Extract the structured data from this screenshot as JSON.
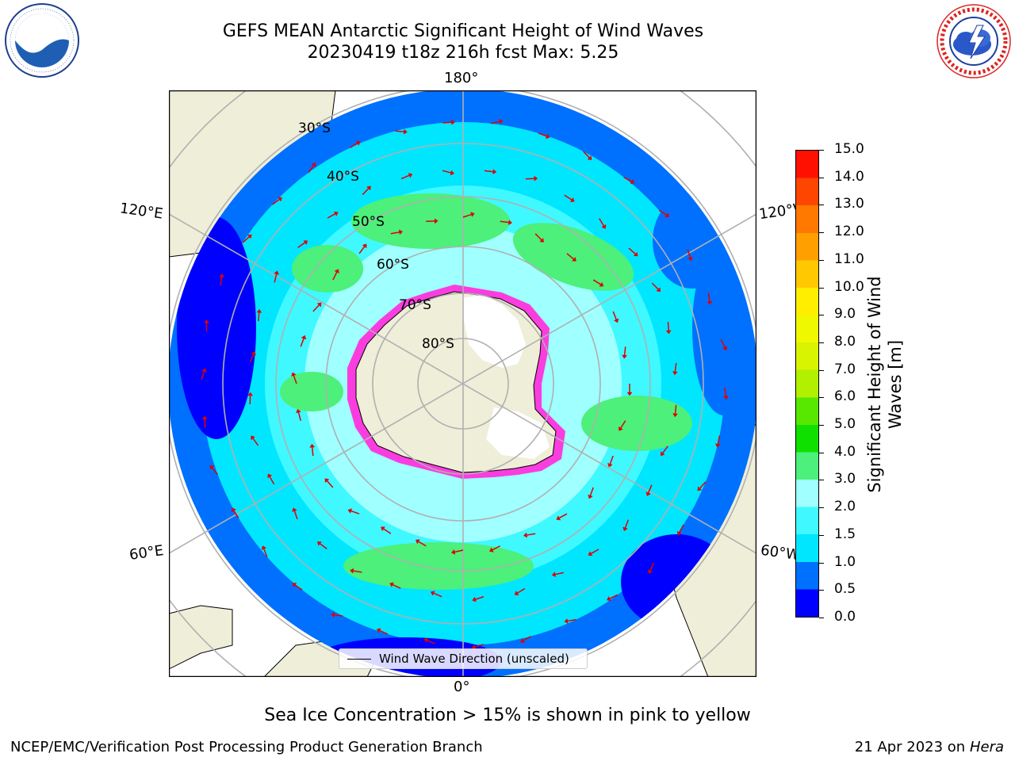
{
  "header": {
    "title_line1": "GEFS MEAN Antarctic Significant Height of Wind Waves",
    "title_line2": "20230419 t18z 216h fcst   Max: 5.25"
  },
  "logos": {
    "left": {
      "name": "NOAA",
      "ring_text": "NATIONAL OCEANIC AND ATMOSPHERIC ADMINISTRATION · U.S. DEPARTMENT OF COMMERCE"
    },
    "right": {
      "name": "NATIONAL WEATHER SERVICE"
    }
  },
  "map": {
    "projection": "south polar stereographic",
    "longitude_labels": {
      "top": "180°",
      "bottom": "0°",
      "upper_left": "120°E",
      "lower_left": "60°E",
      "upper_right": "120°W",
      "lower_right": "60°W"
    },
    "latitude_labels": [
      "30°S",
      "40°S",
      "50°S",
      "60°S",
      "70°S",
      "80°S"
    ],
    "legend": "Wind Wave Direction (unscaled)",
    "colors": {
      "land": "#efeed9",
      "sea_ice": "#ff33dd",
      "gridline": "#b0b0b0",
      "arrow": "#e00000"
    }
  },
  "colorbar": {
    "label": "Significant Height of Wind Waves [m]",
    "ticks": [
      "0.0",
      "0.5",
      "1.0",
      "1.5",
      "2.0",
      "3.0",
      "4.0",
      "5.0",
      "6.0",
      "7.0",
      "8.0",
      "9.0",
      "10.0",
      "11.0",
      "12.0",
      "13.0",
      "14.0",
      "15.0"
    ],
    "colors": [
      "#0000ff",
      "#0070ff",
      "#00e6ff",
      "#40f8ff",
      "#a0ffff",
      "#4cf07a",
      "#10e000",
      "#58e800",
      "#b0f000",
      "#d8f400",
      "#f0f800",
      "#ffee00",
      "#ffc800",
      "#ffa000",
      "#ff7800",
      "#ff4600",
      "#ff1000"
    ]
  },
  "note": "Sea Ice Concentration > 15% is shown in pink to yellow",
  "footer": {
    "left": "NCEP/EMC/Verification Post Processing Product Generation Branch",
    "right_prefix": "21 Apr 2023 on ",
    "right_host": "Hera"
  }
}
